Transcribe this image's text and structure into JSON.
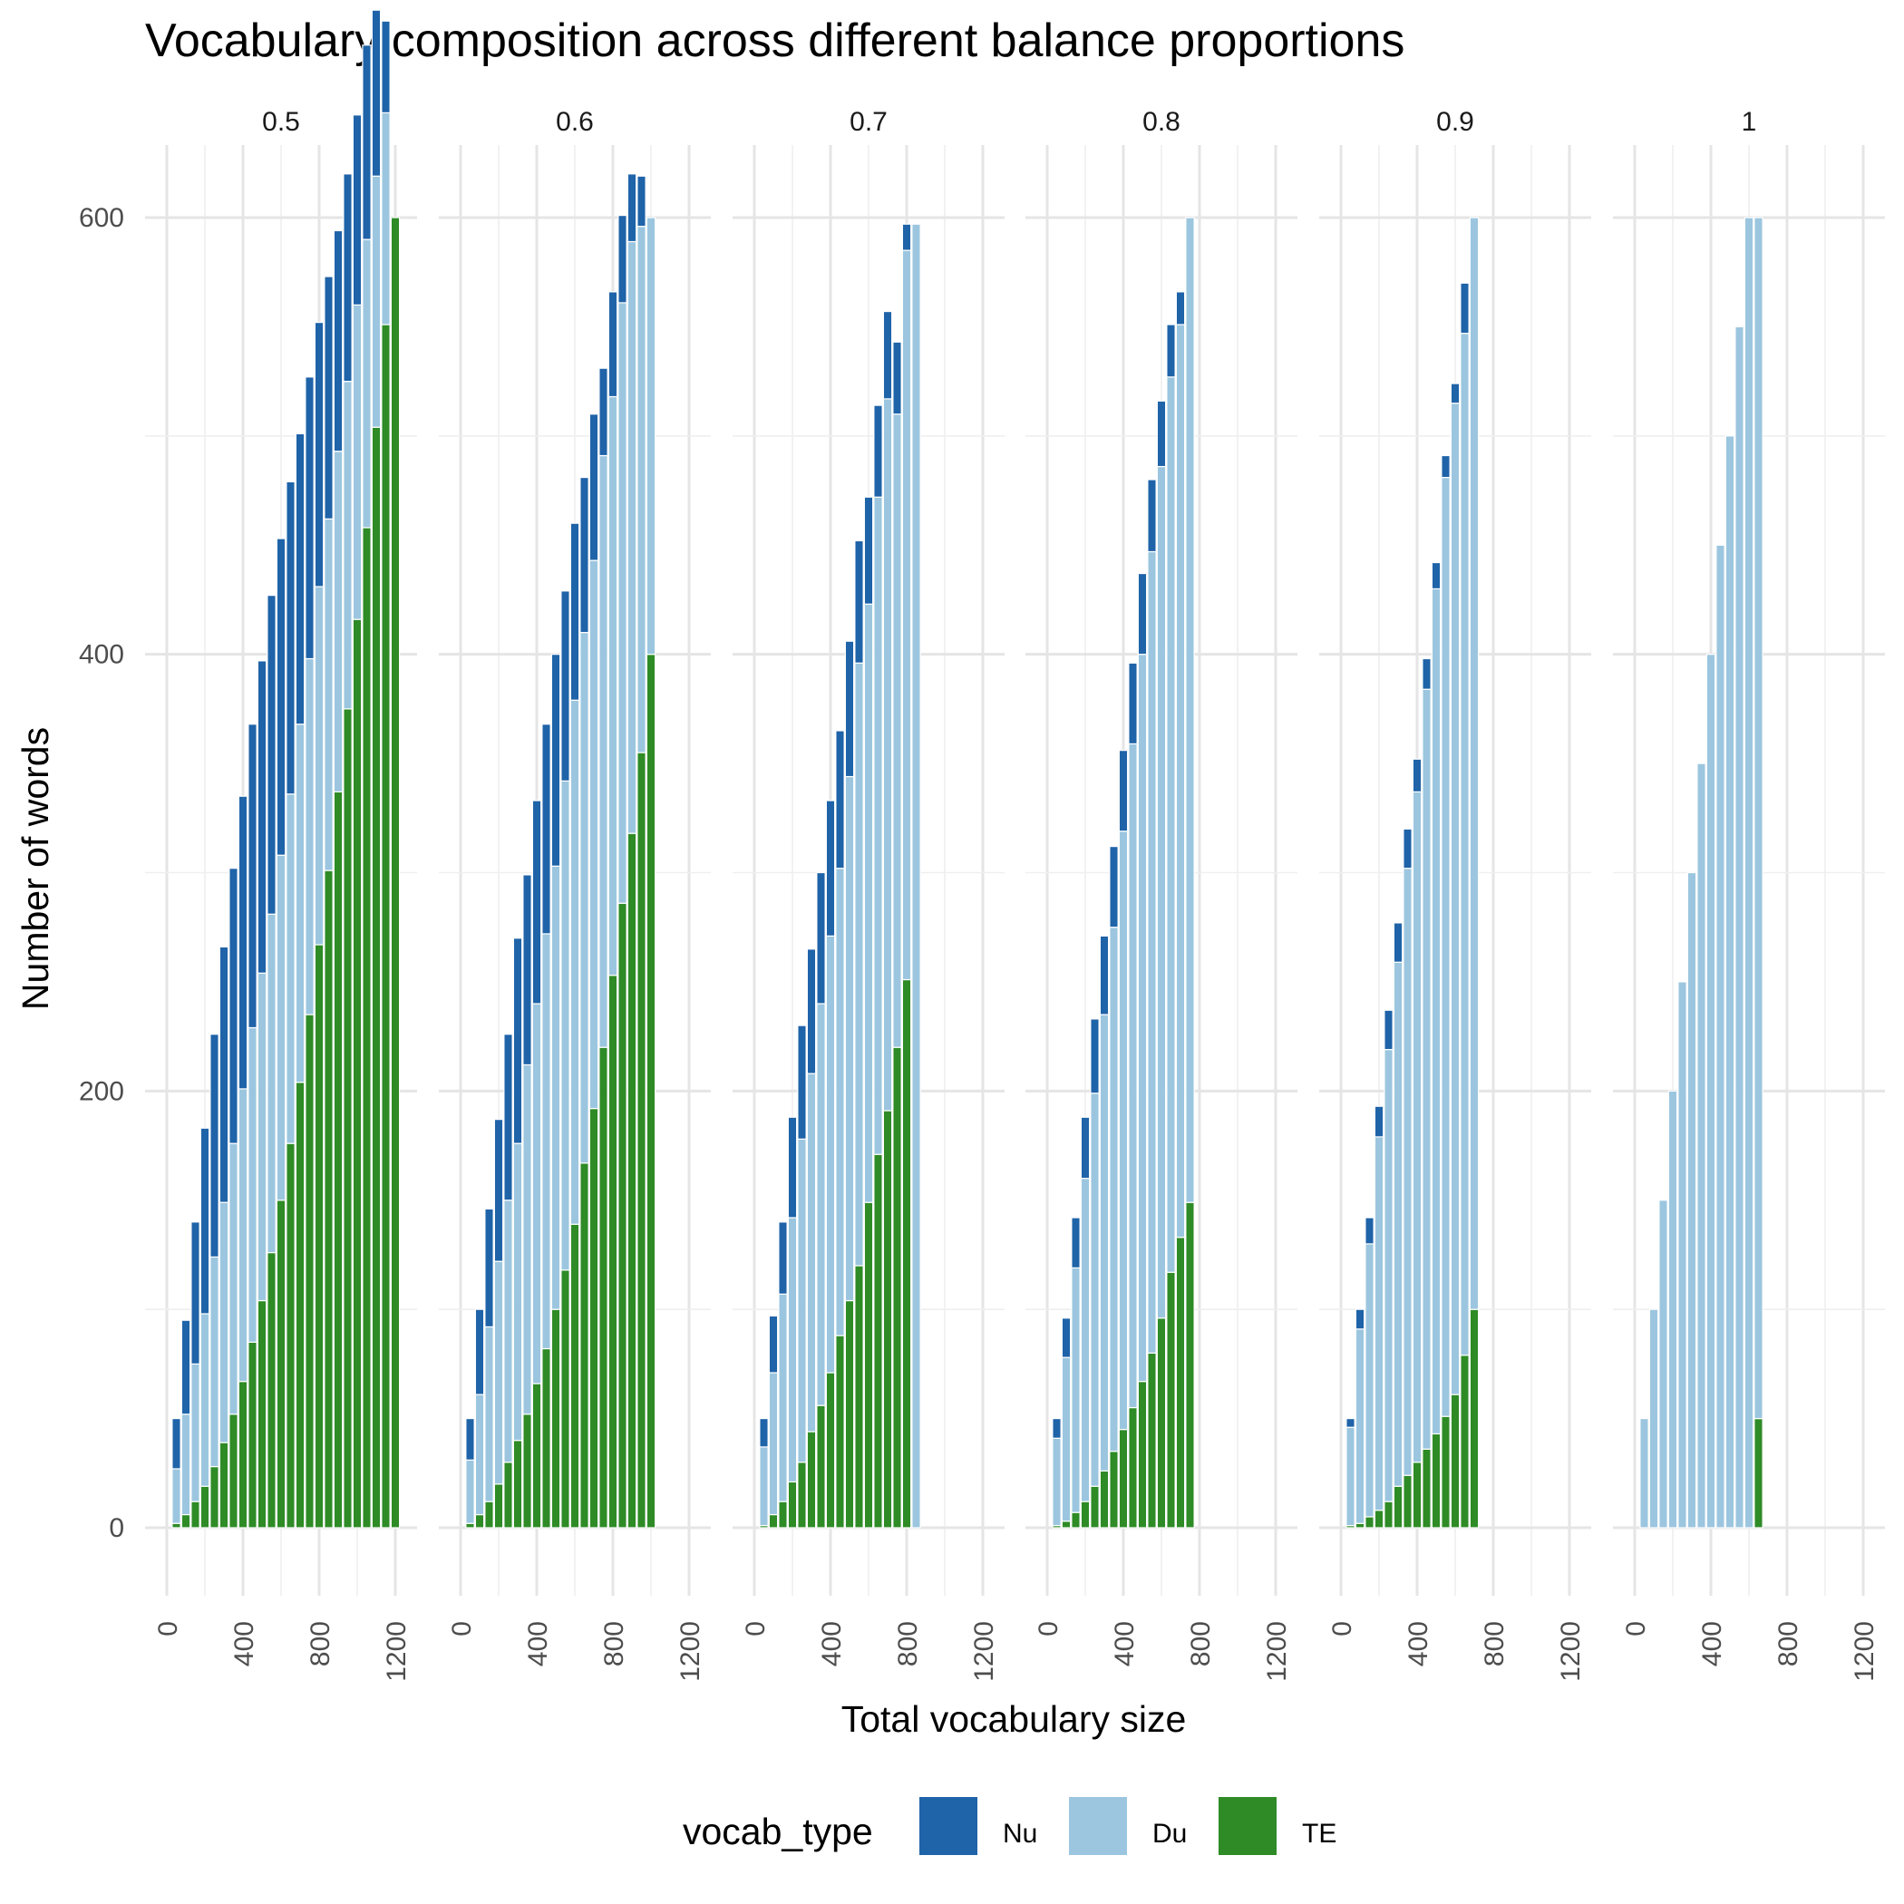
{
  "chart_data": {
    "type": "bar",
    "stacked": true,
    "title": "Vocabulary composition across different balance proportions",
    "xlabel": "Total vocabulary size",
    "ylabel": "Number of words",
    "xlim": [
      0,
      1200
    ],
    "ylim": [
      0,
      600
    ],
    "x_ticks": [
      0,
      400,
      800,
      1200
    ],
    "y_ticks": [
      0,
      200,
      400,
      600
    ],
    "grid": true,
    "legend": {
      "title": "vocab_type",
      "position": "bottom",
      "entries": [
        {
          "name": "Nu",
          "color": "#1f63a8"
        },
        {
          "name": "Du",
          "color": "#9cc6df"
        },
        {
          "name": "TE",
          "color": "#2e8b26"
        }
      ]
    },
    "panels": [
      {
        "label": "0.5",
        "x": [
          50,
          100,
          150,
          200,
          250,
          300,
          350,
          400,
          450,
          500,
          550,
          600,
          650,
          700,
          750,
          800,
          850,
          900,
          950,
          1000,
          1050,
          1100,
          1150,
          1200
        ],
        "series": [
          {
            "name": "TE",
            "values": [
              2,
              6,
              12,
              19,
              28,
              39,
              52,
              67,
              85,
              104,
              126,
              150,
              176,
              204,
              235,
              267,
              301,
              337,
              375,
              416,
              458,
              504,
              551,
              600
            ]
          },
          {
            "name": "Du",
            "values": [
              25,
              46,
              63,
              79,
              96,
              110,
              124,
              134,
              144,
              150,
              155,
              158,
              160,
              164,
              163,
              164,
              161,
              156,
              150,
              144,
              132,
              115,
              97,
              0
            ]
          },
          {
            "name": "Nu",
            "values": [
              23,
              43,
              65,
              85,
              102,
              117,
              126,
              134,
              139,
              143,
              146,
              145,
              143,
              133,
              129,
              121,
              111,
              101,
              95,
              87,
              89,
              76,
              42,
              0
            ]
          }
        ]
      },
      {
        "label": "0.6",
        "x": [
          50,
          100,
          150,
          200,
          250,
          300,
          350,
          400,
          450,
          500,
          550,
          600,
          650,
          700,
          750,
          800,
          850,
          900,
          950,
          1000
        ],
        "series": [
          {
            "name": "TE",
            "values": [
              2,
              6,
              12,
              20,
              30,
              40,
              52,
              66,
              82,
              100,
              118,
              139,
              167,
              192,
              220,
              253,
              286,
              318,
              355,
              400
            ]
          },
          {
            "name": "Du",
            "values": [
              29,
              55,
              80,
              102,
              120,
              136,
              160,
              174,
              190,
              203,
              224,
              240,
              243,
              251,
              271,
              265,
              275,
              271,
              241,
              200
            ]
          },
          {
            "name": "Nu",
            "values": [
              19,
              39,
              54,
              65,
              76,
              94,
              87,
              93,
              96,
              97,
              87,
              81,
              71,
              67,
              40,
              48,
              40,
              31,
              23,
              0
            ]
          }
        ]
      },
      {
        "label": "0.7",
        "x": [
          50,
          100,
          150,
          200,
          250,
          300,
          350,
          400,
          450,
          500,
          550,
          600,
          650,
          700,
          750,
          800,
          850
        ],
        "series": [
          {
            "name": "TE",
            "values": [
              1,
              6,
              12,
              21,
              30,
              44,
              56,
              71,
              88,
              104,
              120,
              149,
              171,
              191,
              220,
              251,
              0
            ]
          },
          {
            "name": "Du",
            "values": [
              36,
              65,
              95,
              121,
              148,
              164,
              184,
              200,
              214,
              240,
              276,
              274,
              301,
              326,
              290,
              334,
              597
            ]
          },
          {
            "name": "Nu",
            "values": [
              13,
              26,
              33,
              46,
              52,
              57,
              60,
              62,
              63,
              62,
              56,
              49,
              42,
              40,
              33,
              12,
              0
            ]
          }
        ]
      },
      {
        "label": "0.8",
        "x": [
          50,
          100,
          150,
          200,
          250,
          300,
          350,
          400,
          450,
          500,
          550,
          600,
          650,
          700,
          750
        ],
        "series": [
          {
            "name": "TE",
            "values": [
              1,
              3,
              7,
              12,
              19,
              26,
              35,
              45,
              55,
              67,
              80,
              96,
              117,
              133,
              149
            ]
          },
          {
            "name": "Du",
            "values": [
              40,
              75,
              112,
              148,
              180,
              209,
              240,
              274,
              304,
              333,
              367,
              390,
              410,
              418,
              451
            ]
          },
          {
            "name": "Nu",
            "values": [
              9,
              18,
              23,
              28,
              34,
              36,
              37,
              37,
              37,
              37,
              33,
              30,
              24,
              15,
              0
            ]
          }
        ]
      },
      {
        "label": "0.9",
        "x": [
          50,
          100,
          150,
          200,
          250,
          300,
          350,
          400,
          450,
          500,
          550,
          600,
          650,
          700
        ],
        "series": [
          {
            "name": "TE",
            "values": [
              1,
              2,
              5,
              8,
              12,
              19,
              24,
              30,
              36,
              43,
              51,
              61,
              79,
              100
            ]
          },
          {
            "name": "Du",
            "values": [
              45,
              89,
              125,
              171,
              207,
              240,
              278,
              307,
              348,
              387,
              430,
              454,
              468,
              500
            ]
          },
          {
            "name": "Nu",
            "values": [
              4,
              9,
              12,
              14,
              18,
              18,
              18,
              15,
              14,
              12,
              10,
              9,
              23,
              0
            ]
          }
        ]
      },
      {
        "label": "1",
        "x": [
          50,
          100,
          150,
          200,
          250,
          300,
          350,
          400,
          450,
          500,
          550,
          600,
          650
        ],
        "series": [
          {
            "name": "TE",
            "values": [
              0,
              0,
              0,
              0,
              0,
              0,
              0,
              0,
              0,
              0,
              0,
              0,
              50
            ]
          },
          {
            "name": "Du",
            "values": [
              50,
              100,
              150,
              200,
              250,
              300,
              350,
              400,
              450,
              500,
              550,
              600,
              550
            ]
          },
          {
            "name": "Nu",
            "values": [
              0,
              0,
              0,
              0,
              0,
              0,
              0,
              0,
              0,
              0,
              0,
              0,
              0
            ]
          }
        ]
      }
    ]
  }
}
